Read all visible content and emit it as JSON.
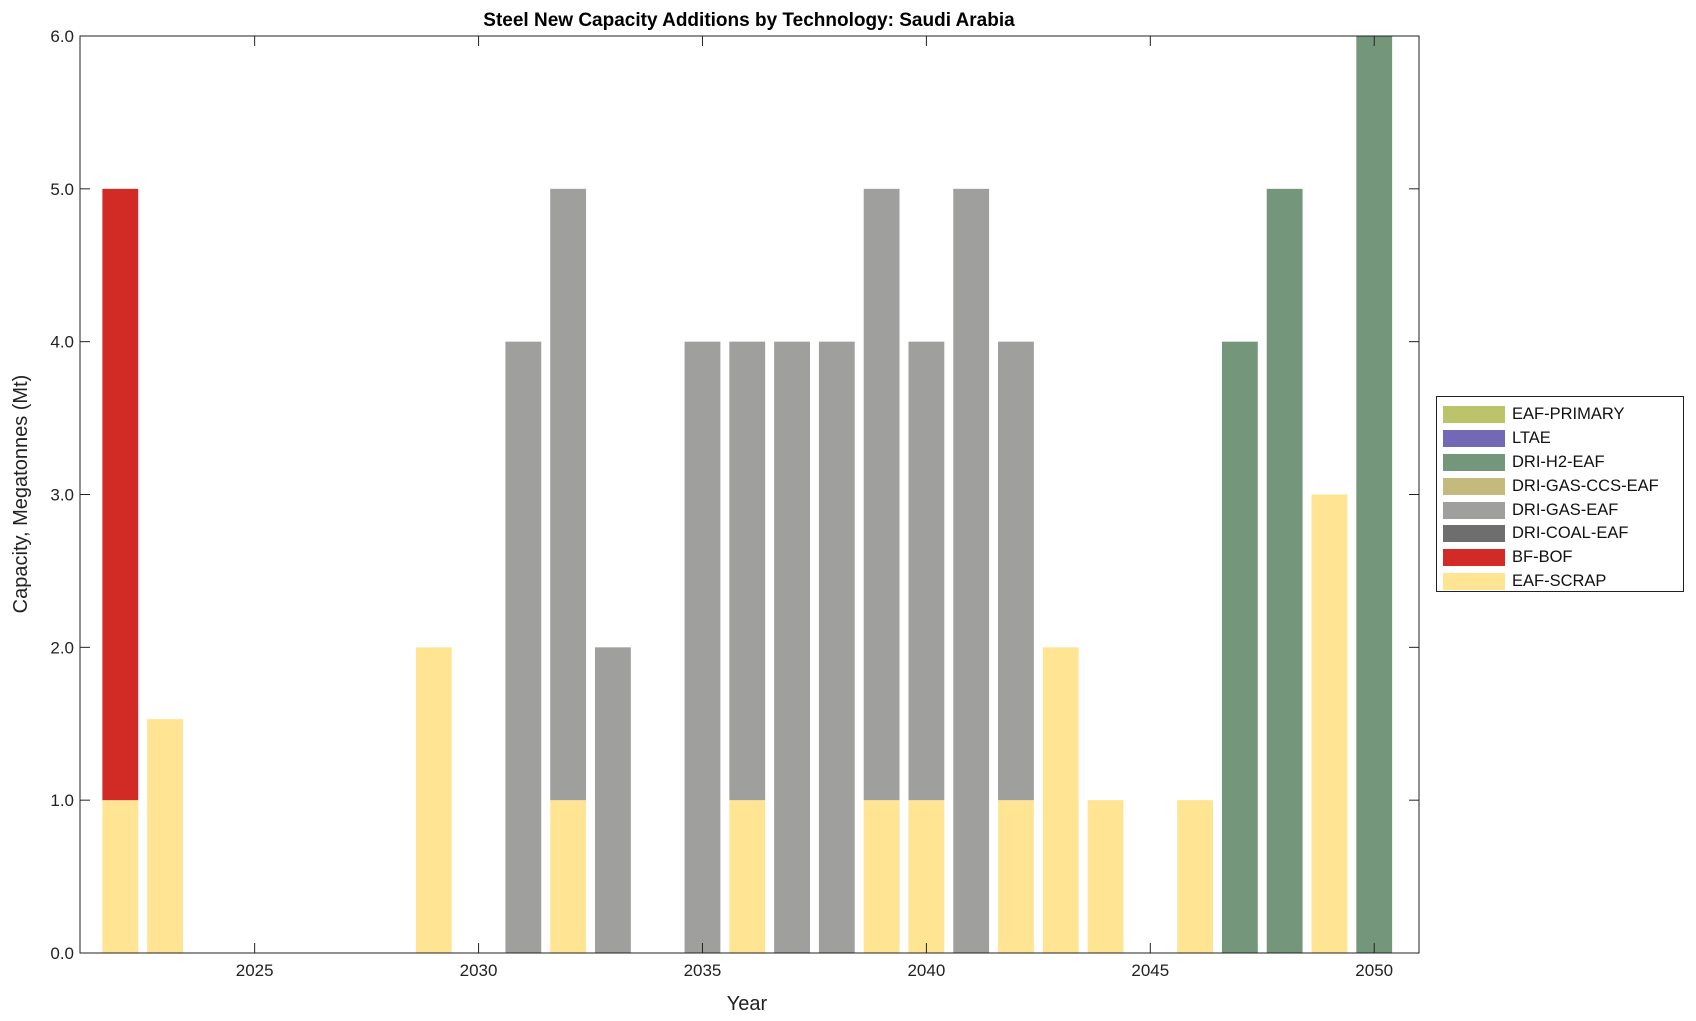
{
  "chart_data": {
    "type": "bar",
    "stacked": true,
    "title": "Steel New Capacity Additions by Technology: Saudi Arabia",
    "xlabel": "Year",
    "ylabel": "Capacity, Megatonnes (Mt)",
    "xlim": [
      2021.1,
      2051.0
    ],
    "ylim": [
      0,
      6
    ],
    "xticks": [
      2025,
      2030,
      2035,
      2040,
      2045,
      2050
    ],
    "xtick_labels": [
      "2025",
      "2030",
      "2035",
      "2040",
      "2045",
      "2050"
    ],
    "yticks": [
      0,
      1,
      2,
      3,
      4,
      5,
      6
    ],
    "ytick_labels": [
      "0.0",
      "1.0",
      "2.0",
      "3.0",
      "4.0",
      "5.0",
      "6.0"
    ],
    "grid": false,
    "legend_position": "outside-right",
    "bar_width": 0.8,
    "categories": [
      2022,
      2023,
      2029,
      2031,
      2032,
      2033,
      2035,
      2036,
      2037,
      2038,
      2039,
      2040,
      2041,
      2042,
      2043,
      2044,
      2046,
      2047,
      2048,
      2049,
      2050
    ],
    "series": [
      {
        "name": "EAF-SCRAP",
        "color": "#FFE494",
        "values": [
          1,
          1.53,
          2,
          0,
          1,
          0,
          0,
          1,
          0,
          0,
          1,
          1,
          0,
          1,
          2,
          1,
          1,
          0,
          0,
          3,
          0
        ]
      },
      {
        "name": "BF-BOF",
        "color": "#D22B25",
        "values": [
          4,
          0,
          0,
          0,
          0,
          0,
          0,
          0,
          0,
          0,
          0,
          0,
          0,
          0,
          0,
          0,
          0,
          0,
          0,
          0,
          0
        ]
      },
      {
        "name": "DRI-COAL-EAF",
        "color": "#6E6E6E",
        "values": [
          0,
          0,
          0,
          0,
          0,
          0,
          0,
          0,
          0,
          0,
          0,
          0,
          0,
          0,
          0,
          0,
          0,
          0,
          0,
          0,
          0
        ]
      },
      {
        "name": "DRI-GAS-EAF",
        "color": "#9F9F9E",
        "values": [
          0,
          0,
          0,
          4,
          4,
          2,
          4,
          3,
          4,
          4,
          4,
          3,
          5,
          3,
          0,
          0,
          0,
          0,
          0,
          0,
          0
        ]
      },
      {
        "name": "DRI-GAS-CCS-EAF",
        "color": "#C4BA7B",
        "values": [
          0,
          0,
          0,
          0,
          0,
          0,
          0,
          0,
          0,
          0,
          0,
          0,
          0,
          0,
          0,
          0,
          0,
          0,
          0,
          0,
          0
        ]
      },
      {
        "name": "DRI-H2-EAF",
        "color": "#74977B",
        "values": [
          0,
          0,
          0,
          0,
          0,
          0,
          0,
          0,
          0,
          0,
          0,
          0,
          0,
          0,
          0,
          0,
          0,
          4,
          5,
          0,
          6
        ]
      },
      {
        "name": "LTAE",
        "color": "#7268B6",
        "values": [
          0,
          0,
          0,
          0,
          0,
          0,
          0,
          0,
          0,
          0,
          0,
          0,
          0,
          0,
          0,
          0,
          0,
          0,
          0,
          0,
          0
        ]
      },
      {
        "name": "EAF-PRIMARY",
        "color": "#BCC46B",
        "values": [
          0,
          0,
          0,
          0,
          0,
          0,
          0,
          0,
          0,
          0,
          0,
          0,
          0,
          0,
          0,
          0,
          0,
          0,
          0,
          0,
          0
        ]
      }
    ],
    "legend_order": [
      "EAF-PRIMARY",
      "LTAE",
      "DRI-H2-EAF",
      "DRI-GAS-CCS-EAF",
      "DRI-GAS-EAF",
      "DRI-COAL-EAF",
      "BF-BOF",
      "EAF-SCRAP"
    ]
  }
}
